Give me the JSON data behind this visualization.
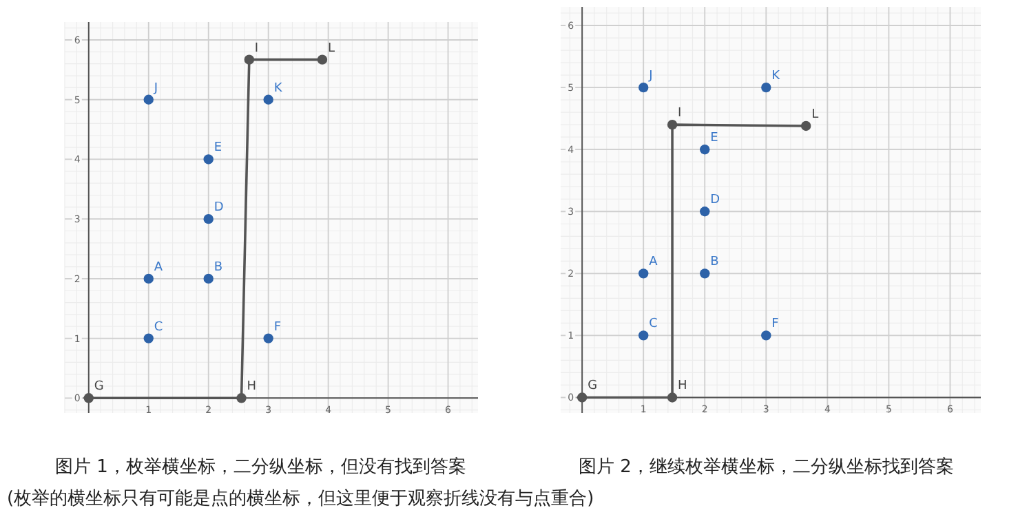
{
  "chart_data": [
    {
      "type": "scatter",
      "xlim": [
        -0.4,
        6.5
      ],
      "ylim": [
        -0.25,
        6.3
      ],
      "xticks": [
        1,
        2,
        3,
        4,
        5,
        6
      ],
      "yticks": [
        0,
        1,
        2,
        3,
        4,
        5,
        6
      ],
      "grid": true,
      "marker": "circle",
      "series": [
        {
          "color": "#2d62a8",
          "x": [
            1,
            2,
            1,
            2,
            2,
            3,
            1,
            3
          ],
          "values": [
            2,
            2,
            1,
            3,
            4,
            1,
            5,
            5
          ]
        },
        {
          "type": "line",
          "color": "#555555",
          "x": [
            0,
            2.55,
            2.68,
            3.9
          ],
          "values": [
            0,
            0,
            5.67,
            5.67
          ]
        }
      ],
      "annotations": [
        {
          "text": "A",
          "x": 1,
          "y": 2
        },
        {
          "text": "B",
          "x": 2,
          "y": 2
        },
        {
          "text": "C",
          "x": 1,
          "y": 1
        },
        {
          "text": "D",
          "x": 2,
          "y": 3
        },
        {
          "text": "E",
          "x": 2,
          "y": 4
        },
        {
          "text": "F",
          "x": 3,
          "y": 1
        },
        {
          "text": "J",
          "x": 1,
          "y": 5
        },
        {
          "text": "K",
          "x": 3,
          "y": 5
        },
        {
          "text": "G",
          "x": 0,
          "y": 0
        },
        {
          "text": "H",
          "x": 2.55,
          "y": 0
        },
        {
          "text": "I",
          "x": 2.68,
          "y": 5.67
        },
        {
          "text": "L",
          "x": 3.9,
          "y": 5.67
        },
        "图片 1，枚举横坐标，二分纵坐标，但没有找到答案",
        "(枚举的横坐标只有可能是点的横坐标，但这里便于观察折线没有与点重合)"
      ]
    },
    {
      "type": "scatter",
      "xlim": [
        -0.35,
        6.5
      ],
      "ylim": [
        -0.25,
        6.3
      ],
      "xticks": [
        1,
        2,
        3,
        4,
        5,
        6
      ],
      "yticks": [
        0,
        1,
        2,
        3,
        4,
        5,
        6
      ],
      "grid": true,
      "marker": "circle",
      "series": [
        {
          "color": "#2d62a8",
          "x": [
            1,
            2,
            1,
            2,
            2,
            3,
            1,
            3
          ],
          "values": [
            2,
            2,
            1,
            3,
            4,
            1,
            5,
            5
          ]
        },
        {
          "type": "line",
          "color": "#555555",
          "x": [
            0,
            1.47,
            1.47,
            3.65
          ],
          "values": [
            0,
            0,
            4.4,
            4.38
          ]
        }
      ],
      "annotations": [
        {
          "text": "A",
          "x": 1,
          "y": 2
        },
        {
          "text": "B",
          "x": 2,
          "y": 2
        },
        {
          "text": "C",
          "x": 1,
          "y": 1
        },
        {
          "text": "D",
          "x": 2,
          "y": 3
        },
        {
          "text": "E",
          "x": 2,
          "y": 4
        },
        {
          "text": "F",
          "x": 3,
          "y": 1
        },
        {
          "text": "J",
          "x": 1,
          "y": 5
        },
        {
          "text": "K",
          "x": 3,
          "y": 5
        },
        {
          "text": "G",
          "x": 0,
          "y": 0
        },
        {
          "text": "H",
          "x": 1.47,
          "y": 0
        },
        {
          "text": "I",
          "x": 1.47,
          "y": 4.4
        },
        {
          "text": "L",
          "x": 3.65,
          "y": 4.38
        },
        "图片 2，继续枚举横坐标，二分纵坐标找到答案"
      ]
    }
  ]
}
